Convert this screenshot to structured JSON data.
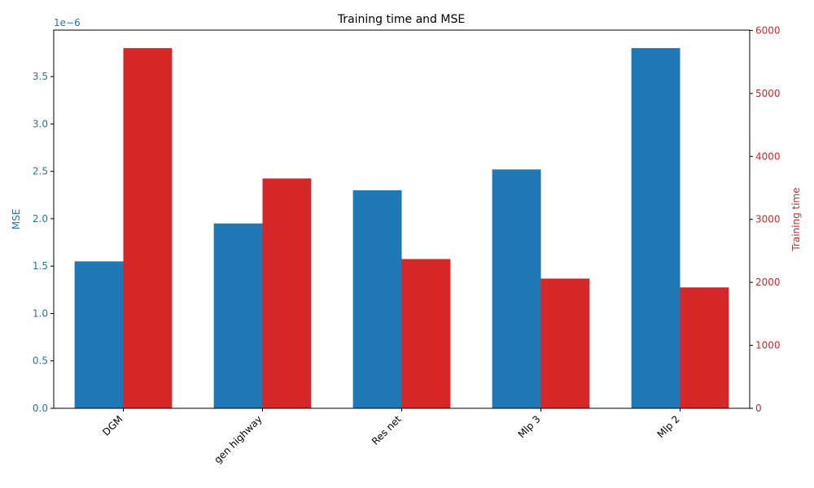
{
  "chart_data": {
    "type": "bar",
    "title": "Training time and MSE",
    "xlabel": "",
    "categories": [
      "DGM",
      "gen highway",
      "Res net",
      "Mlp 3",
      "Mlp 2"
    ],
    "series": [
      {
        "name": "MSE",
        "axis": "left",
        "color": "#1f77b4",
        "values": [
          1.55e-06,
          1.95e-06,
          2.3e-06,
          2.52e-06,
          3.8e-06
        ]
      },
      {
        "name": "Training time",
        "axis": "right",
        "color": "#d62728",
        "values": [
          5720,
          3650,
          2370,
          2060,
          1920
        ]
      }
    ],
    "y_left": {
      "label": "MSE",
      "color": "#1f77b4",
      "lim": [
        0,
        3.99e-06
      ],
      "ticks": [
        0,
        5e-07,
        1e-06,
        1.5e-06,
        2e-06,
        2.5e-06,
        3e-06,
        3.5e-06
      ],
      "tick_labels": [
        "0.0",
        "0.5",
        "1.0",
        "1.5",
        "2.0",
        "2.5",
        "3.0",
        "3.5"
      ],
      "offset_text": "1e−6"
    },
    "y_right": {
      "label": "Training time",
      "color": "#d62728",
      "lim": [
        0,
        6006
      ],
      "ticks": [
        0,
        1000,
        2000,
        3000,
        4000,
        5000,
        6000
      ],
      "tick_labels": [
        "0",
        "1000",
        "2000",
        "3000",
        "4000",
        "5000",
        "6000"
      ]
    },
    "grid": false,
    "legend": "none"
  }
}
